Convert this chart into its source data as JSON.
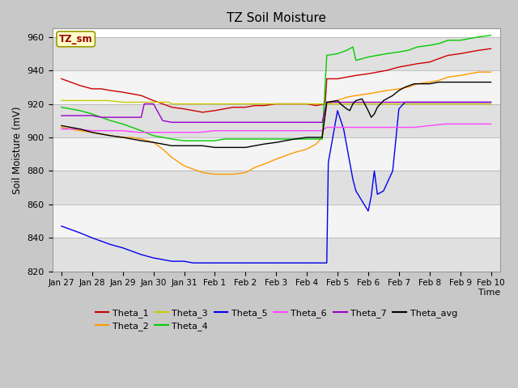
{
  "title": "TZ Soil Moisture",
  "ylabel": "Soil Moisture (mV)",
  "xlabel": "Time",
  "ylim": [
    820,
    965
  ],
  "xlim": [
    -0.3,
    14.3
  ],
  "yticks": [
    820,
    840,
    860,
    880,
    900,
    920,
    940,
    960
  ],
  "xtick_labels": [
    "Jan 27",
    "Jan 28",
    "Jan 29",
    "Jan 30",
    "Jan 31",
    "Feb 1",
    "Feb 2",
    "Feb 3",
    "Feb 4",
    "Feb 5",
    "Feb 6",
    "Feb 7",
    "Feb 8",
    "Feb 9",
    "Feb 10"
  ],
  "fig_bg": "#c8c8c8",
  "plot_bg": "#ffffff",
  "band_colors": [
    "#e0e0e0",
    "#f4f4f4"
  ],
  "series_order": [
    "Theta_1",
    "Theta_2",
    "Theta_3",
    "Theta_4",
    "Theta_5",
    "Theta_6",
    "Theta_7",
    "Theta_avg"
  ],
  "legend_order": [
    "Theta_1",
    "Theta_2",
    "Theta_3",
    "Theta_4",
    "Theta_5",
    "Theta_6",
    "Theta_7",
    "Theta_avg"
  ],
  "series": {
    "Theta_1": {
      "color": "#cc0000",
      "points": [
        [
          0,
          935
        ],
        [
          0.3,
          933
        ],
        [
          0.6,
          931
        ],
        [
          1,
          929
        ],
        [
          1.3,
          929
        ],
        [
          1.6,
          928
        ],
        [
          2,
          927
        ],
        [
          2.3,
          926
        ],
        [
          2.6,
          925
        ],
        [
          3,
          922
        ],
        [
          3.3,
          920
        ],
        [
          3.6,
          918
        ],
        [
          4,
          917
        ],
        [
          4.3,
          916
        ],
        [
          4.6,
          915
        ],
        [
          5,
          916
        ],
        [
          5.3,
          917
        ],
        [
          5.6,
          918
        ],
        [
          6,
          918
        ],
        [
          6.3,
          919
        ],
        [
          6.6,
          919
        ],
        [
          7,
          920
        ],
        [
          7.3,
          920
        ],
        [
          7.6,
          920
        ],
        [
          8,
          920
        ],
        [
          8.3,
          919
        ],
        [
          8.6,
          920
        ],
        [
          8.65,
          935
        ],
        [
          9,
          935
        ],
        [
          9.3,
          936
        ],
        [
          9.6,
          937
        ],
        [
          10,
          938
        ],
        [
          10.3,
          939
        ],
        [
          10.6,
          940
        ],
        [
          11,
          942
        ],
        [
          11.3,
          943
        ],
        [
          11.6,
          944
        ],
        [
          12,
          945
        ],
        [
          12.3,
          947
        ],
        [
          12.6,
          949
        ],
        [
          13,
          950
        ],
        [
          13.3,
          951
        ],
        [
          13.6,
          952
        ],
        [
          14,
          953
        ]
      ]
    },
    "Theta_2": {
      "color": "#ff9900",
      "points": [
        [
          0,
          906
        ],
        [
          0.3,
          905
        ],
        [
          0.6,
          904
        ],
        [
          1,
          903
        ],
        [
          1.3,
          902
        ],
        [
          1.6,
          901
        ],
        [
          2,
          900
        ],
        [
          2.3,
          900
        ],
        [
          2.6,
          899
        ],
        [
          3,
          897
        ],
        [
          3.3,
          893
        ],
        [
          3.6,
          888
        ],
        [
          4,
          883
        ],
        [
          4.3,
          881
        ],
        [
          4.6,
          879
        ],
        [
          5,
          878
        ],
        [
          5.3,
          878
        ],
        [
          5.6,
          878
        ],
        [
          6,
          879
        ],
        [
          6.3,
          882
        ],
        [
          6.6,
          884
        ],
        [
          7,
          887
        ],
        [
          7.3,
          889
        ],
        [
          7.6,
          891
        ],
        [
          8,
          893
        ],
        [
          8.3,
          896
        ],
        [
          8.5,
          900
        ],
        [
          8.65,
          920
        ],
        [
          9,
          922
        ],
        [
          9.3,
          924
        ],
        [
          9.6,
          925
        ],
        [
          10,
          926
        ],
        [
          10.3,
          927
        ],
        [
          10.6,
          928
        ],
        [
          11,
          929
        ],
        [
          11.3,
          930
        ],
        [
          11.6,
          932
        ],
        [
          12,
          933
        ],
        [
          12.3,
          934
        ],
        [
          12.6,
          936
        ],
        [
          13,
          937
        ],
        [
          13.3,
          938
        ],
        [
          13.6,
          939
        ],
        [
          14,
          939
        ]
      ]
    },
    "Theta_3": {
      "color": "#cccc00",
      "points": [
        [
          0,
          922
        ],
        [
          0.5,
          922
        ],
        [
          1,
          922
        ],
        [
          1.5,
          922
        ],
        [
          2,
          921
        ],
        [
          2.5,
          921
        ],
        [
          3,
          921
        ],
        [
          3.3,
          921
        ],
        [
          3.5,
          921
        ],
        [
          3.6,
          920
        ],
        [
          4,
          920
        ],
        [
          4.5,
          920
        ],
        [
          5,
          920
        ],
        [
          5.5,
          920
        ],
        [
          6,
          920
        ],
        [
          6.5,
          920
        ],
        [
          7,
          920
        ],
        [
          7.5,
          920
        ],
        [
          8,
          920
        ],
        [
          8.5,
          920
        ],
        [
          8.65,
          920
        ],
        [
          9,
          920
        ],
        [
          9.5,
          920
        ],
        [
          10,
          920
        ],
        [
          10.5,
          920
        ],
        [
          11,
          920
        ],
        [
          11.5,
          920
        ],
        [
          12,
          920
        ],
        [
          12.5,
          920
        ],
        [
          13,
          920
        ],
        [
          13.5,
          920
        ],
        [
          14,
          920
        ]
      ]
    },
    "Theta_4": {
      "color": "#00cc00",
      "points": [
        [
          0,
          918
        ],
        [
          0.3,
          917
        ],
        [
          0.6,
          916
        ],
        [
          1,
          914
        ],
        [
          1.3,
          912
        ],
        [
          1.6,
          910
        ],
        [
          2,
          908
        ],
        [
          2.3,
          906
        ],
        [
          2.6,
          904
        ],
        [
          3,
          901
        ],
        [
          3.3,
          900
        ],
        [
          3.6,
          899
        ],
        [
          4,
          898
        ],
        [
          4.3,
          898
        ],
        [
          4.6,
          898
        ],
        [
          5,
          898
        ],
        [
          5.3,
          899
        ],
        [
          5.6,
          899
        ],
        [
          6,
          899
        ],
        [
          6.3,
          899
        ],
        [
          6.6,
          899
        ],
        [
          7,
          899
        ],
        [
          7.3,
          899
        ],
        [
          7.6,
          899
        ],
        [
          8,
          899
        ],
        [
          8.3,
          899
        ],
        [
          8.5,
          899
        ],
        [
          8.65,
          949
        ],
        [
          9,
          950
        ],
        [
          9.3,
          952
        ],
        [
          9.5,
          954
        ],
        [
          9.6,
          946
        ],
        [
          10,
          948
        ],
        [
          10.3,
          949
        ],
        [
          10.6,
          950
        ],
        [
          11,
          951
        ],
        [
          11.3,
          952
        ],
        [
          11.6,
          954
        ],
        [
          12,
          955
        ],
        [
          12.3,
          956
        ],
        [
          12.6,
          958
        ],
        [
          13,
          958
        ],
        [
          13.3,
          959
        ],
        [
          13.6,
          960
        ],
        [
          14,
          961
        ]
      ]
    },
    "Theta_5": {
      "color": "#0000ee",
      "points": [
        [
          0,
          847
        ],
        [
          0.3,
          845
        ],
        [
          0.6,
          843
        ],
        [
          1,
          840
        ],
        [
          1.3,
          838
        ],
        [
          1.6,
          836
        ],
        [
          2,
          834
        ],
        [
          2.3,
          832
        ],
        [
          2.6,
          830
        ],
        [
          3,
          828
        ],
        [
          3.3,
          827
        ],
        [
          3.6,
          826
        ],
        [
          4,
          826
        ],
        [
          4.3,
          825
        ],
        [
          4.6,
          825
        ],
        [
          5,
          825
        ],
        [
          5.3,
          825
        ],
        [
          5.6,
          825
        ],
        [
          6,
          825
        ],
        [
          6.3,
          825
        ],
        [
          6.6,
          825
        ],
        [
          7,
          825
        ],
        [
          7.3,
          825
        ],
        [
          7.6,
          825
        ],
        [
          8,
          825
        ],
        [
          8.3,
          825
        ],
        [
          8.5,
          825
        ],
        [
          8.65,
          825
        ],
        [
          8.7,
          885
        ],
        [
          9,
          916
        ],
        [
          9.2,
          905
        ],
        [
          9.3,
          895
        ],
        [
          9.4,
          885
        ],
        [
          9.5,
          875
        ],
        [
          9.6,
          868
        ],
        [
          9.8,
          862
        ],
        [
          10,
          856
        ],
        [
          10.1,
          865
        ],
        [
          10.2,
          880
        ],
        [
          10.3,
          866
        ],
        [
          10.5,
          868
        ],
        [
          10.8,
          880
        ],
        [
          11,
          917
        ],
        [
          11.2,
          921
        ],
        [
          11.5,
          921
        ],
        [
          12,
          921
        ],
        [
          12.5,
          921
        ],
        [
          13,
          921
        ],
        [
          13.5,
          921
        ],
        [
          14,
          921
        ]
      ]
    },
    "Theta_6": {
      "color": "#ff44ff",
      "points": [
        [
          0,
          905
        ],
        [
          0.5,
          905
        ],
        [
          1,
          904
        ],
        [
          1.5,
          904
        ],
        [
          2,
          904
        ],
        [
          2.5,
          903
        ],
        [
          3,
          903
        ],
        [
          3.5,
          903
        ],
        [
          4,
          903
        ],
        [
          4.5,
          903
        ],
        [
          5,
          904
        ],
        [
          5.5,
          904
        ],
        [
          6,
          904
        ],
        [
          6.5,
          904
        ],
        [
          7,
          904
        ],
        [
          7.5,
          904
        ],
        [
          8,
          904
        ],
        [
          8.5,
          904
        ],
        [
          8.65,
          906
        ],
        [
          9,
          906
        ],
        [
          9.5,
          906
        ],
        [
          10,
          906
        ],
        [
          10.5,
          906
        ],
        [
          11,
          906
        ],
        [
          11.5,
          906
        ],
        [
          12,
          907
        ],
        [
          12.5,
          908
        ],
        [
          13,
          908
        ],
        [
          13.5,
          908
        ],
        [
          14,
          908
        ]
      ]
    },
    "Theta_7": {
      "color": "#9900cc",
      "points": [
        [
          0,
          913
        ],
        [
          0.3,
          913
        ],
        [
          0.6,
          913
        ],
        [
          1,
          913
        ],
        [
          1.3,
          912
        ],
        [
          1.6,
          912
        ],
        [
          2,
          912
        ],
        [
          2.3,
          912
        ],
        [
          2.6,
          912
        ],
        [
          2.7,
          920
        ],
        [
          3,
          920
        ],
        [
          3.3,
          910
        ],
        [
          3.6,
          909
        ],
        [
          4,
          909
        ],
        [
          4.5,
          909
        ],
        [
          5,
          909
        ],
        [
          5.5,
          909
        ],
        [
          6,
          909
        ],
        [
          6.5,
          909
        ],
        [
          7,
          909
        ],
        [
          7.5,
          909
        ],
        [
          8,
          909
        ],
        [
          8.5,
          909
        ],
        [
          8.65,
          921
        ],
        [
          9,
          921
        ],
        [
          9.5,
          921
        ],
        [
          10,
          921
        ],
        [
          10.5,
          921
        ],
        [
          11,
          921
        ],
        [
          11.5,
          921
        ],
        [
          12,
          921
        ],
        [
          12.5,
          921
        ],
        [
          13,
          921
        ],
        [
          13.5,
          921
        ],
        [
          14,
          921
        ]
      ]
    },
    "Theta_avg": {
      "color": "#000000",
      "points": [
        [
          0,
          907
        ],
        [
          0.3,
          906
        ],
        [
          0.6,
          905
        ],
        [
          1,
          903
        ],
        [
          1.3,
          902
        ],
        [
          1.6,
          901
        ],
        [
          2,
          900
        ],
        [
          2.3,
          899
        ],
        [
          2.6,
          898
        ],
        [
          3,
          897
        ],
        [
          3.3,
          896
        ],
        [
          3.6,
          895
        ],
        [
          4,
          895
        ],
        [
          4.3,
          895
        ],
        [
          4.6,
          895
        ],
        [
          5,
          894
        ],
        [
          5.3,
          894
        ],
        [
          5.6,
          894
        ],
        [
          6,
          894
        ],
        [
          6.3,
          895
        ],
        [
          6.6,
          896
        ],
        [
          7,
          897
        ],
        [
          7.3,
          898
        ],
        [
          7.6,
          899
        ],
        [
          8,
          900
        ],
        [
          8.3,
          900
        ],
        [
          8.5,
          900
        ],
        [
          8.65,
          921
        ],
        [
          9,
          922
        ],
        [
          9.1,
          920
        ],
        [
          9.3,
          917
        ],
        [
          9.4,
          916
        ],
        [
          9.5,
          920
        ],
        [
          9.6,
          922
        ],
        [
          9.8,
          923
        ],
        [
          10,
          916
        ],
        [
          10.1,
          912
        ],
        [
          10.2,
          914
        ],
        [
          10.3,
          918
        ],
        [
          10.5,
          922
        ],
        [
          10.8,
          925
        ],
        [
          11,
          928
        ],
        [
          11.2,
          930
        ],
        [
          11.5,
          932
        ],
        [
          12,
          932
        ],
        [
          12.3,
          933
        ],
        [
          12.5,
          933
        ],
        [
          13,
          933
        ],
        [
          13.5,
          933
        ],
        [
          14,
          933
        ]
      ]
    }
  }
}
